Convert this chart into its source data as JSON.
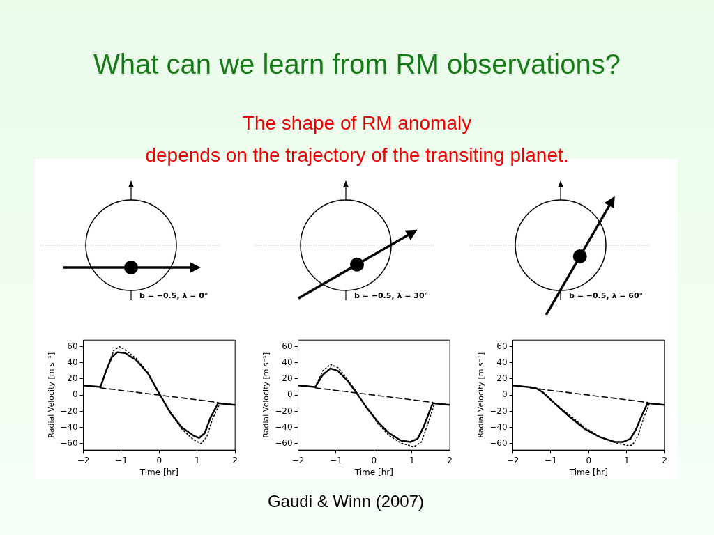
{
  "chart_data": [
    {
      "type": "line",
      "title": "What can we learn from RM observations?",
      "subtitle": "The shape of RM anomaly\ndepends on the trajectory of the transiting planet.",
      "xlabel": "Time [hr]",
      "ylabel": "Radial Velocity [m s⁻¹]",
      "xlim": [
        -2,
        2
      ],
      "xticks": [
        -2,
        -1,
        0,
        1,
        2
      ],
      "ylim": [
        -68,
        68
      ],
      "yticks": [
        -60,
        -40,
        -20,
        0,
        20,
        40,
        60
      ],
      "grid": false,
      "legend": false,
      "annotations": [
        "b = −0.5, λ = 0°"
      ],
      "series": [
        {
          "color": "#000000",
          "line_style": "solid",
          "x": [
            -2,
            -1.55,
            -1.4,
            -1.25,
            -1.1,
            -0.9,
            -0.6,
            -0.3,
            0,
            0.3,
            0.6,
            0.9,
            1.05,
            1.2,
            1.35,
            1.55,
            2
          ],
          "values": [
            12,
            10,
            30,
            47,
            53,
            52,
            43,
            27,
            2,
            -22,
            -40,
            -50,
            -53,
            -47,
            -28,
            -10,
            -12
          ]
        },
        {
          "color": "#000000",
          "line_style": "dotted",
          "x": [
            -2,
            -1.55,
            -1.35,
            -1.2,
            -1.05,
            -0.9,
            -0.6,
            -0.3,
            0,
            0.3,
            0.6,
            0.9,
            1.1,
            1.25,
            1.4,
            1.6,
            2
          ],
          "values": [
            12,
            10,
            35,
            55,
            60,
            56,
            45,
            28,
            2,
            -23,
            -42,
            -55,
            -60,
            -52,
            -30,
            -10,
            -12
          ]
        },
        {
          "color": "#000000",
          "line_style": "dashed",
          "x": [
            -1.55,
            1.55
          ],
          "values": [
            9,
            -9
          ]
        }
      ]
    },
    {
      "type": "line",
      "xlabel": "Time [hr]",
      "ylabel": "Radial Velocity [m s⁻¹]",
      "xlim": [
        -2,
        2
      ],
      "xticks": [
        -2,
        -1,
        0,
        1,
        2
      ],
      "ylim": [
        -68,
        68
      ],
      "yticks": [
        -60,
        -40,
        -20,
        0,
        20,
        40,
        60
      ],
      "grid": false,
      "legend": false,
      "annotations": [
        "b = −0.5, λ = 30°",
        "Gaudi & Winn (2007)"
      ],
      "series": [
        {
          "color": "#000000",
          "line_style": "solid",
          "x": [
            -2,
            -1.55,
            -1.35,
            -1.15,
            -0.95,
            -0.7,
            -0.45,
            -0.2,
            0.1,
            0.4,
            0.7,
            0.95,
            1.15,
            1.3,
            1.55,
            2
          ],
          "values": [
            12,
            10,
            25,
            33,
            30,
            18,
            2,
            -15,
            -33,
            -47,
            -56,
            -58,
            -54,
            -40,
            -10,
            -12
          ]
        },
        {
          "color": "#000000",
          "line_style": "dotted",
          "x": [
            -2,
            -1.55,
            -1.35,
            -1.15,
            -0.95,
            -0.7,
            -0.45,
            -0.2,
            0.1,
            0.4,
            0.7,
            1.05,
            1.25,
            1.4,
            1.6,
            2
          ],
          "values": [
            12,
            10,
            30,
            38,
            34,
            20,
            3,
            -15,
            -35,
            -50,
            -59,
            -64,
            -58,
            -38,
            -10,
            -12
          ]
        },
        {
          "color": "#000000",
          "line_style": "dashed",
          "x": [
            -1.55,
            1.55
          ],
          "values": [
            9,
            -9
          ]
        }
      ]
    },
    {
      "type": "line",
      "xlabel": "Time [hr]",
      "ylabel": "Radial Velocity [m s⁻¹]",
      "xlim": [
        -2,
        2
      ],
      "xticks": [
        -2,
        -1,
        0,
        1,
        2
      ],
      "ylim": [
        -68,
        68
      ],
      "yticks": [
        -60,
        -40,
        -20,
        0,
        20,
        40,
        60
      ],
      "grid": false,
      "legend": false,
      "annotations": [
        "b = −0.5, λ = 60°"
      ],
      "series": [
        {
          "color": "#000000",
          "line_style": "solid",
          "x": [
            -2,
            -1.4,
            -1.2,
            -0.9,
            -0.5,
            -0.1,
            0.3,
            0.7,
            0.9,
            1.1,
            1.25,
            1.4,
            1.55,
            2
          ],
          "values": [
            12,
            9,
            3,
            -10,
            -27,
            -42,
            -52,
            -58,
            -58,
            -54,
            -42,
            -25,
            -10,
            -12
          ]
        },
        {
          "color": "#000000",
          "line_style": "dotted",
          "x": [
            -2,
            -1.4,
            -1.2,
            -0.9,
            -0.5,
            -0.1,
            0.3,
            0.7,
            1,
            1.15,
            1.3,
            1.45,
            1.6,
            2
          ],
          "values": [
            12,
            9,
            3,
            -10,
            -25,
            -40,
            -52,
            -59,
            -62,
            -62,
            -50,
            -28,
            -10,
            -12
          ]
        },
        {
          "color": "#000000",
          "line_style": "dashed",
          "x": [
            -1.55,
            1.55
          ],
          "values": [
            9,
            -9
          ]
        }
      ]
    }
  ]
}
